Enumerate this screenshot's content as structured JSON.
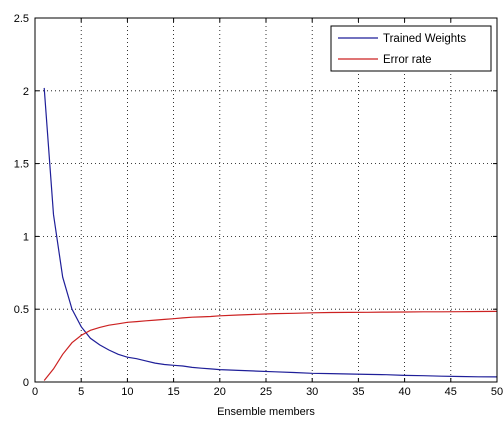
{
  "chart_data": {
    "type": "line",
    "title": "",
    "xlabel": "Ensemble members",
    "ylabel": "",
    "xlim": [
      0,
      50
    ],
    "ylim": [
      0,
      2.5
    ],
    "xticks": [
      "0",
      "5",
      "10",
      "15",
      "20",
      "25",
      "30",
      "35",
      "40",
      "45",
      "50"
    ],
    "yticks": [
      "0",
      "0.5",
      "1",
      "1.5",
      "2",
      "2.5"
    ],
    "grid": true,
    "legend_position": "top-right",
    "x": [
      1,
      2,
      3,
      4,
      5,
      6,
      7,
      8,
      9,
      10,
      11,
      12,
      13,
      14,
      15,
      16,
      17,
      18,
      19,
      20,
      22,
      24,
      26,
      28,
      30,
      32,
      34,
      36,
      38,
      40,
      42,
      44,
      46,
      48,
      50
    ],
    "series": [
      {
        "name": "Trained Weights",
        "color": "#1f1f99",
        "values": [
          2.02,
          1.15,
          0.72,
          0.5,
          0.38,
          0.3,
          0.255,
          0.22,
          0.19,
          0.17,
          0.16,
          0.145,
          0.13,
          0.12,
          0.115,
          0.11,
          0.1,
          0.095,
          0.09,
          0.085,
          0.08,
          0.075,
          0.07,
          0.065,
          0.06,
          0.058,
          0.055,
          0.052,
          0.05,
          0.045,
          0.043,
          0.04,
          0.038,
          0.036,
          0.035
        ]
      },
      {
        "name": "Error rate",
        "color": "#cc2222",
        "values": [
          0.01,
          0.09,
          0.19,
          0.27,
          0.32,
          0.355,
          0.375,
          0.39,
          0.4,
          0.41,
          0.415,
          0.42,
          0.425,
          0.43,
          0.435,
          0.44,
          0.445,
          0.447,
          0.45,
          0.455,
          0.46,
          0.465,
          0.47,
          0.472,
          0.475,
          0.477,
          0.478,
          0.479,
          0.48,
          0.481,
          0.482,
          0.482,
          0.483,
          0.484,
          0.485
        ]
      }
    ]
  }
}
